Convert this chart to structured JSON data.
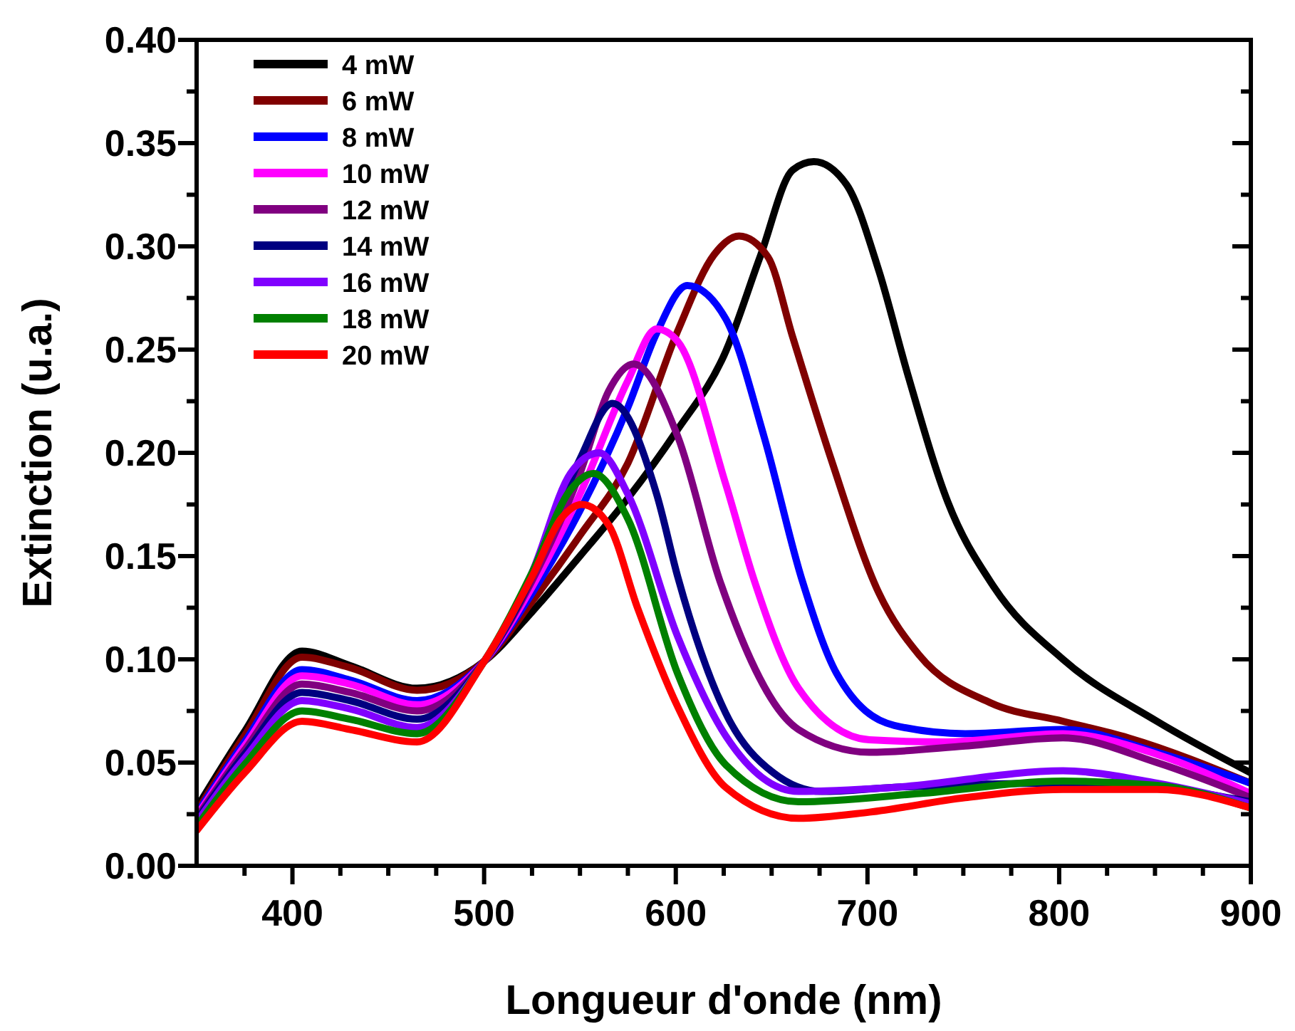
{
  "chart_data": {
    "type": "line",
    "xlabel": "Longueur d'onde (nm)",
    "ylabel": "Extinction (u.a.)",
    "xlim": [
      350,
      900
    ],
    "ylim": [
      0,
      0.4
    ],
    "xticks": [
      {
        "value": 375,
        "label": null
      },
      400,
      {
        "value": 425,
        "label": null
      },
      {
        "value": 450,
        "label": null
      },
      {
        "value": 475,
        "label": null
      },
      500,
      {
        "value": 525,
        "label": null
      },
      {
        "value": 550,
        "label": null
      },
      {
        "value": 575,
        "label": null
      },
      600,
      {
        "value": 625,
        "label": null
      },
      {
        "value": 650,
        "label": null
      },
      {
        "value": 675,
        "label": null
      },
      700,
      {
        "value": 725,
        "label": null
      },
      {
        "value": 750,
        "label": null
      },
      {
        "value": 775,
        "label": null
      },
      800,
      {
        "value": 825,
        "label": null
      },
      {
        "value": 850,
        "label": null
      },
      {
        "value": 875,
        "label": null
      },
      900
    ],
    "yticks": [
      {
        "value": 0,
        "label": "0.00"
      },
      {
        "value": 0.025,
        "label": null
      },
      {
        "value": 0.05,
        "label": "0.05"
      },
      {
        "value": 0.075,
        "label": null
      },
      {
        "value": 0.1,
        "label": "0.10"
      },
      {
        "value": 0.125,
        "label": null
      },
      {
        "value": 0.15,
        "label": "0.15"
      },
      {
        "value": 0.175,
        "label": null
      },
      {
        "value": 0.2,
        "label": "0.20"
      },
      {
        "value": 0.225,
        "label": null
      },
      {
        "value": 0.25,
        "label": "0.25"
      },
      {
        "value": 0.275,
        "label": null
      },
      {
        "value": 0.3,
        "label": "0.30"
      },
      {
        "value": 0.325,
        "label": null
      },
      {
        "value": 0.35,
        "label": "0.35"
      },
      {
        "value": 0.375,
        "label": null
      },
      {
        "value": 0.4,
        "label": "0.40"
      }
    ],
    "grid": false,
    "legend": "top left",
    "marker": "none",
    "line_style": "solid",
    "series": [
      {
        "name": "4 mW",
        "color": "#000000",
        "x": [
          350,
          375,
          405,
          430,
          465,
          500,
          525,
          550,
          575,
          600,
          626,
          644,
          661,
          672,
          689,
          706,
          721,
          742,
          766,
          802,
          851,
          900
        ],
        "values": [
          0.028,
          0.065,
          0.104,
          0.097,
          0.086,
          0.099,
          0.123,
          0.15,
          0.178,
          0.21,
          0.249,
          0.295,
          0.337,
          0.341,
          0.33,
          0.288,
          0.238,
          0.176,
          0.135,
          0.1,
          0.07,
          0.045
        ]
      },
      {
        "name": "6 mW",
        "color": "#800000",
        "x": [
          350,
          375,
          405,
          430,
          465,
          500,
          525,
          550,
          575,
          601,
          620,
          633,
          648,
          661,
          681,
          706,
          727,
          764,
          802,
          836,
          900
        ],
        "values": [
          0.026,
          0.063,
          0.101,
          0.096,
          0.085,
          0.099,
          0.128,
          0.16,
          0.195,
          0.259,
          0.296,
          0.305,
          0.295,
          0.256,
          0.197,
          0.132,
          0.102,
          0.079,
          0.07,
          0.062,
          0.04
        ]
      },
      {
        "name": "8 mW",
        "color": "#0000ff",
        "x": [
          350,
          375,
          405,
          430,
          465,
          500,
          525,
          550,
          575,
          590,
          606,
          626,
          646,
          666,
          684,
          714,
          751,
          802,
          851,
          900
        ],
        "values": [
          0.025,
          0.06,
          0.095,
          0.09,
          0.08,
          0.099,
          0.132,
          0.172,
          0.222,
          0.258,
          0.281,
          0.265,
          0.208,
          0.138,
          0.093,
          0.068,
          0.064,
          0.066,
          0.055,
          0.04
        ]
      },
      {
        "name": "10 mW",
        "color": "#ff00ff",
        "x": [
          350,
          375,
          405,
          430,
          465,
          500,
          525,
          550,
          575,
          590,
          601,
          626,
          641,
          664,
          701,
          739,
          802,
          851,
          900
        ],
        "values": [
          0.024,
          0.058,
          0.092,
          0.088,
          0.078,
          0.099,
          0.135,
          0.18,
          0.235,
          0.26,
          0.254,
          0.185,
          0.138,
          0.086,
          0.061,
          0.06,
          0.064,
          0.054,
          0.035
        ]
      },
      {
        "name": "12 mW",
        "color": "#800080",
        "x": [
          350,
          375,
          405,
          430,
          465,
          500,
          525,
          550,
          565,
          578,
          601,
          623,
          664,
          701,
          751,
          802,
          851,
          900
        ],
        "values": [
          0.023,
          0.056,
          0.088,
          0.084,
          0.075,
          0.099,
          0.138,
          0.19,
          0.23,
          0.243,
          0.208,
          0.138,
          0.066,
          0.055,
          0.058,
          0.062,
          0.05,
          0.033
        ]
      },
      {
        "name": "14 mW",
        "color": "#000080",
        "x": [
          350,
          375,
          405,
          430,
          465,
          500,
          525,
          550,
          567,
          590,
          601,
          626,
          651,
          676,
          714,
          802,
          851,
          900
        ],
        "values": [
          0.022,
          0.054,
          0.084,
          0.08,
          0.071,
          0.099,
          0.14,
          0.197,
          0.224,
          0.18,
          0.14,
          0.074,
          0.045,
          0.036,
          0.038,
          0.04,
          0.038,
          0.031
        ]
      },
      {
        "name": "16 mW",
        "color": "#8000ff",
        "x": [
          350,
          375,
          405,
          430,
          465,
          500,
          525,
          545,
          560,
          575,
          601,
          626,
          664,
          714,
          802,
          851,
          900
        ],
        "values": [
          0.021,
          0.052,
          0.08,
          0.076,
          0.067,
          0.099,
          0.142,
          0.19,
          0.2,
          0.18,
          0.111,
          0.063,
          0.036,
          0.038,
          0.046,
          0.04,
          0.03
        ]
      },
      {
        "name": "18 mW",
        "color": "#008000",
        "x": [
          350,
          375,
          405,
          430,
          465,
          500,
          525,
          545,
          557,
          575,
          601,
          626,
          664,
          727,
          802,
          851,
          900
        ],
        "values": [
          0.019,
          0.049,
          0.075,
          0.071,
          0.064,
          0.099,
          0.142,
          0.182,
          0.19,
          0.168,
          0.093,
          0.049,
          0.031,
          0.035,
          0.041,
          0.039,
          0.028
        ]
      },
      {
        "name": "20 mW",
        "color": "#ff0000",
        "x": [
          350,
          375,
          405,
          430,
          465,
          500,
          525,
          540,
          551,
          565,
          580,
          601,
          626,
          664,
          701,
          751,
          802,
          851,
          900
        ],
        "values": [
          0.017,
          0.045,
          0.07,
          0.066,
          0.06,
          0.099,
          0.14,
          0.168,
          0.175,
          0.165,
          0.125,
          0.077,
          0.038,
          0.023,
          0.026,
          0.033,
          0.037,
          0.037,
          0.028
        ]
      }
    ]
  }
}
